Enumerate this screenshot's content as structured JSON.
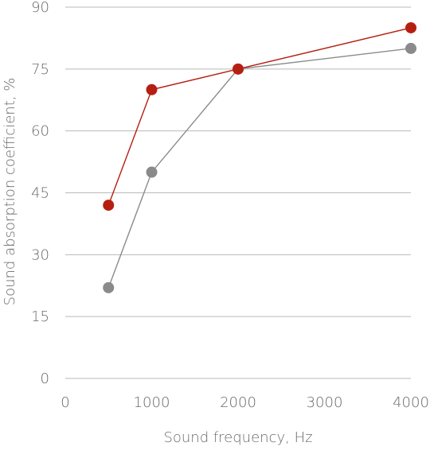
{
  "chart_data": {
    "type": "line",
    "title": "",
    "xlabel": "Sound frequency, Hz",
    "ylabel": "Sound absorption coefficient, %",
    "xlim": [
      0,
      4000
    ],
    "ylim": [
      0,
      90
    ],
    "xticks": [
      0,
      1000,
      2000,
      3000,
      4000
    ],
    "yticks": [
      0,
      15,
      30,
      45,
      60,
      75,
      90
    ],
    "grid": "horizontal",
    "legend": "none",
    "series": [
      {
        "color": "#b51f12",
        "points": [
          {
            "x": 500,
            "y": 42
          },
          {
            "x": 1000,
            "y": 70
          },
          {
            "x": 2000,
            "y": 75
          },
          {
            "x": 4000,
            "y": 85
          }
        ]
      },
      {
        "color": "#8a8a8a",
        "points": [
          {
            "x": 500,
            "y": 22
          },
          {
            "x": 1000,
            "y": 50
          },
          {
            "x": 2000,
            "y": 75
          },
          {
            "x": 4000,
            "y": 80
          }
        ]
      }
    ]
  }
}
